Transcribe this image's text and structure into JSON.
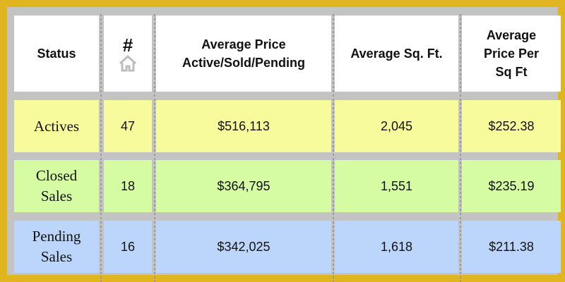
{
  "header": {
    "status": "Status",
    "count": "#",
    "avg_price_line1": "Average Price",
    "avg_price_line2": "Active/Sold/Pending",
    "avg_sqft": "Average Sq. Ft.",
    "ppsf_line1": "Average",
    "ppsf_line2": "Price Per",
    "ppsf_line3": "Sq Ft",
    "home_icon": "home-icon"
  },
  "rows": [
    {
      "status_line1": "Actives",
      "status_line2": "",
      "count": "47",
      "avg_price": "$516,113",
      "avg_sqft": "2,045",
      "ppsf": "$252.38",
      "color": "#f8fb9c"
    },
    {
      "status_line1": "Closed",
      "status_line2": "Sales",
      "count": "18",
      "avg_price": "$364,795",
      "avg_sqft": "1,551",
      "ppsf": "$235.19",
      "color": "#d5fca3"
    },
    {
      "status_line1": "Pending",
      "status_line2": "Sales",
      "count": "16",
      "avg_price": "$342,025",
      "avg_sqft": "1,618",
      "ppsf": "$211.38",
      "color": "#bcd6fb"
    }
  ],
  "colors": {
    "border": "#e0b51f",
    "grid": "#c3c3c3",
    "header_bg": "#ffffff"
  }
}
